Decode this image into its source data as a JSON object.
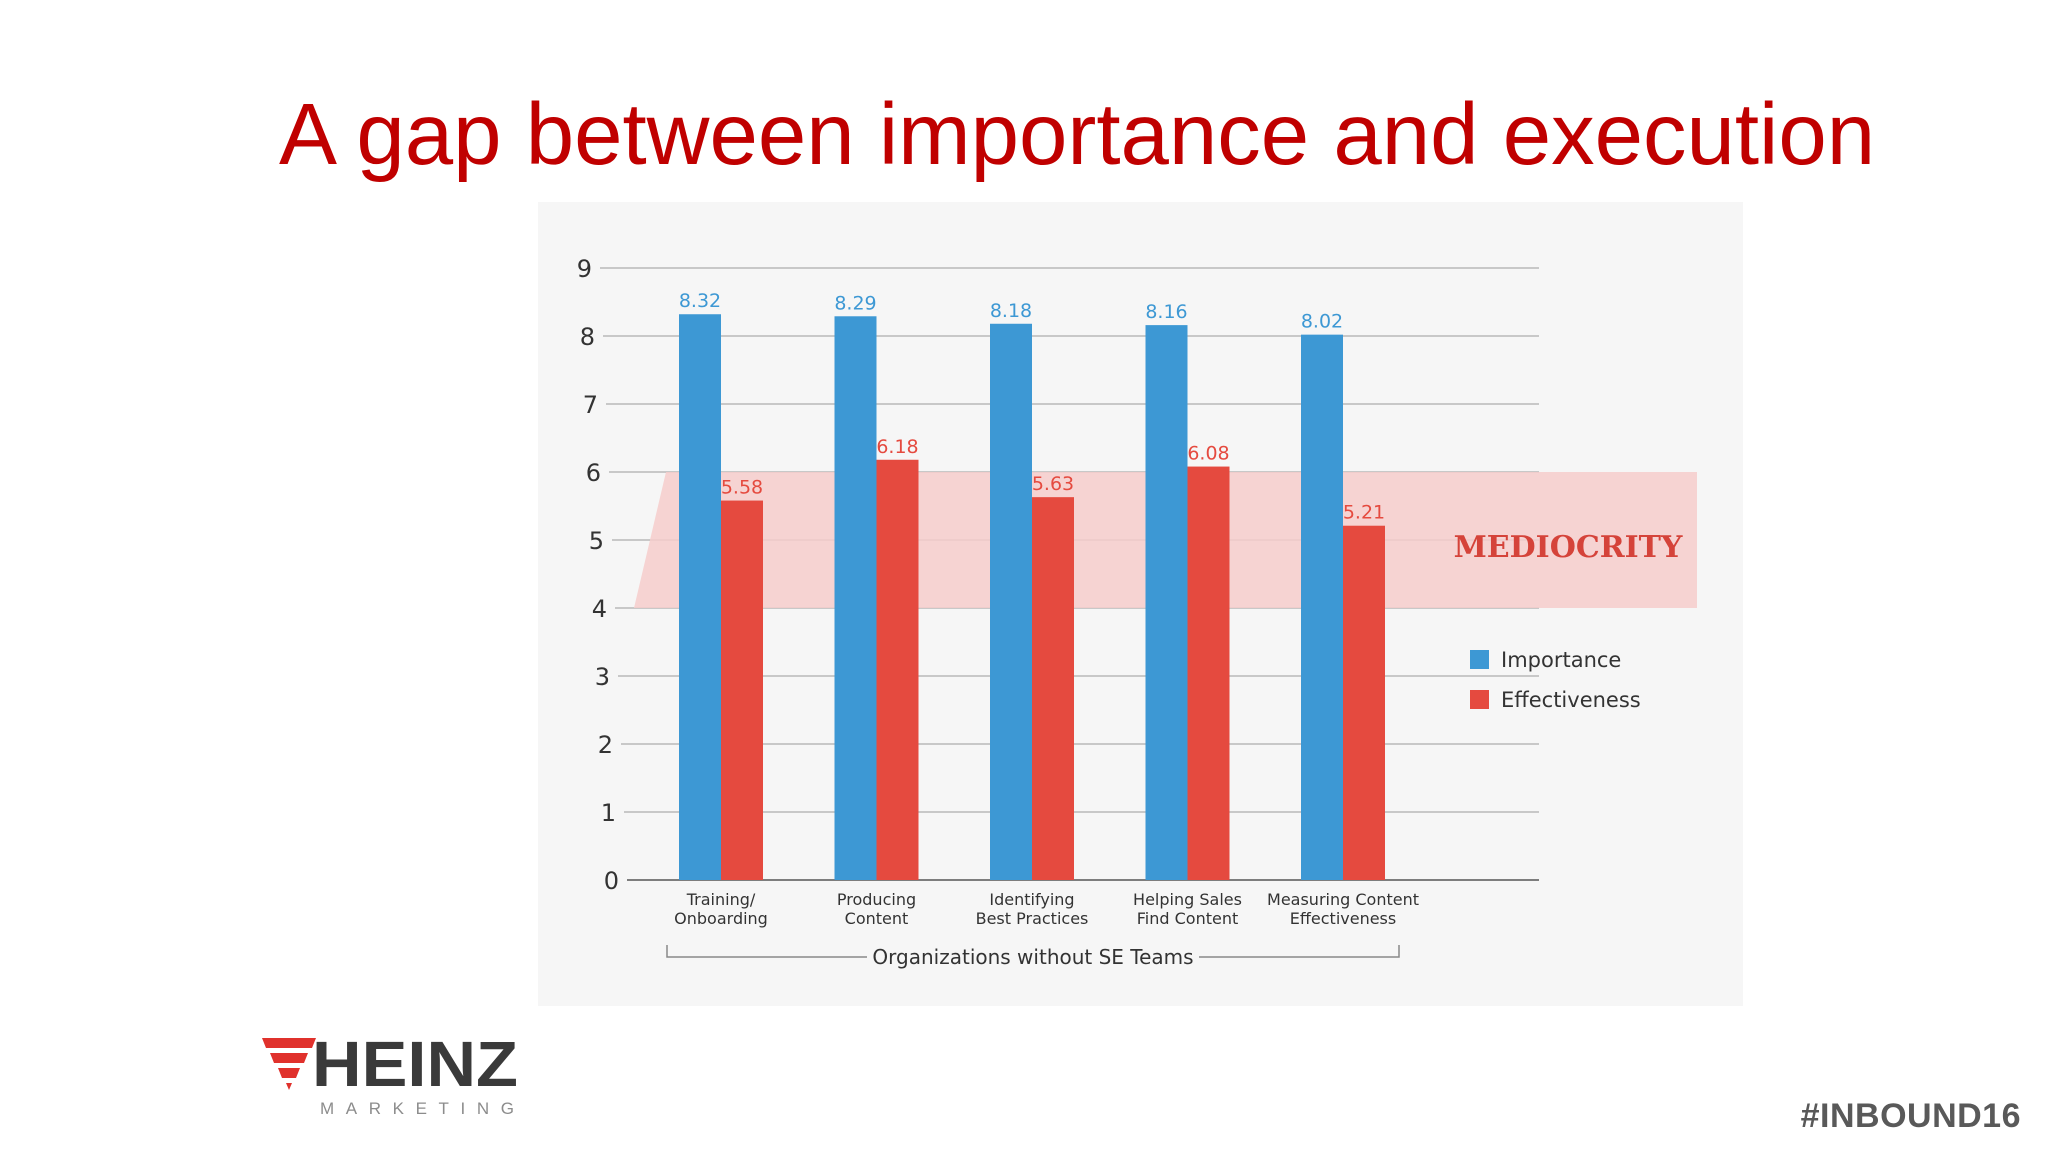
{
  "slide": {
    "title": "A gap between importance and execution",
    "title_color": "#c00000",
    "hashtag": "#INBOUND16"
  },
  "logo": {
    "name": "HEINZ",
    "tagline": "MARKETING",
    "mark_color": "#e0312c",
    "text_color": "#3a3a3a"
  },
  "chart_data": {
    "type": "bar",
    "categories": [
      [
        "Training/",
        "Onboarding"
      ],
      [
        "Producing",
        "Content"
      ],
      [
        "Identifying",
        "Best Practices"
      ],
      [
        "Helping Sales",
        "Find Content"
      ],
      [
        "Measuring Content",
        "Effectiveness"
      ]
    ],
    "series": [
      {
        "name": "Importance",
        "values": [
          8.32,
          8.29,
          8.18,
          8.16,
          8.02
        ],
        "color": "#3d98d4"
      },
      {
        "name": "Effectiveness",
        "values": [
          5.58,
          6.18,
          5.63,
          6.08,
          5.21
        ],
        "color": "#e54a3f"
      }
    ],
    "group_label": "Organizations without SE Teams",
    "ylim": [
      0,
      9
    ],
    "yticks": [
      0,
      1,
      2,
      3,
      4,
      5,
      6,
      7,
      8,
      9
    ],
    "grid": true,
    "legend_position": "right",
    "band": {
      "from": 4,
      "to": 6,
      "label": "MEDIOCRITY",
      "color": "#f6cccb",
      "label_color": "#d5433a"
    }
  }
}
